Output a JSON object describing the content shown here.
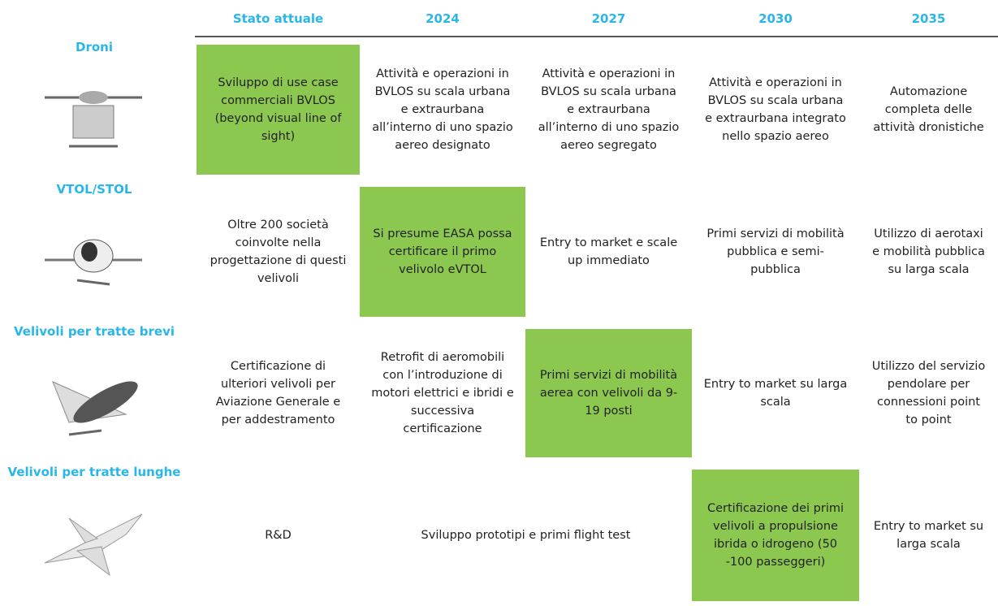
{
  "header": {
    "columns": [
      "Stato attuale",
      "2024",
      "2027",
      "2030",
      "2035"
    ]
  },
  "rows": [
    {
      "label": "Droni",
      "cells": [
        {
          "text": "Sviluppo di use case commerciali BVLOS (beyond visual line of sight)",
          "highlight": true
        },
        {
          "text": "Attività e operazioni in BVLOS su scala urbana e extraurbana all’interno di uno spazio aereo designato"
        },
        {
          "text": "Attività e operazioni in BVLOS su scala urbana e extraurbana all’interno di uno spazio aereo segregato"
        },
        {
          "text": "Attività e operazioni in BVLOS su scala urbana e extraurbana integrato nello spazio aereo"
        },
        {
          "text": "Automazione completa delle attività dronistiche"
        }
      ]
    },
    {
      "label": "VTOL/STOL",
      "cells": [
        {
          "text": "Oltre 200 società coinvolte nella progettazione di questi velivoli"
        },
        {
          "text": "Si presume EASA possa certificare il primo velivolo eVTOL",
          "highlight": true
        },
        {
          "text": "Entry to market e scale up immediato"
        },
        {
          "text": "Primi servizi di mobilità pubblica e semi-pubblica"
        },
        {
          "text": "Utilizzo di aerotaxi e mobilità pubblica su larga scala"
        }
      ]
    },
    {
      "label": "Velivoli per tratte brevi",
      "cells": [
        {
          "text": "Certificazione di ulteriori velivoli per Aviazione Generale e per addestramento"
        },
        {
          "text": "Retrofit di aeromobili con l’introduzione di motori elettrici e ibridi e successiva certificazione"
        },
        {
          "text": "Primi servizi di mobilità aerea con velivoli da 9-19 posti",
          "highlight": true
        },
        {
          "text": "Entry to market su larga scala"
        },
        {
          "text": "Utilizzo del servizio pendolare per connessioni point to point"
        }
      ]
    },
    {
      "label": "Velivoli per tratte lunghe",
      "cells": [
        {
          "text": "R&D"
        },
        {
          "text": "Sviluppo prototipi e primi flight test",
          "span": 2
        },
        {
          "text": "Certificazione dei primi velivoli a propulsione ibrida o idrogeno (50 -100 passeggeri)",
          "highlight": true
        },
        {
          "text": "Entry to market su larga scala"
        }
      ]
    }
  ]
}
